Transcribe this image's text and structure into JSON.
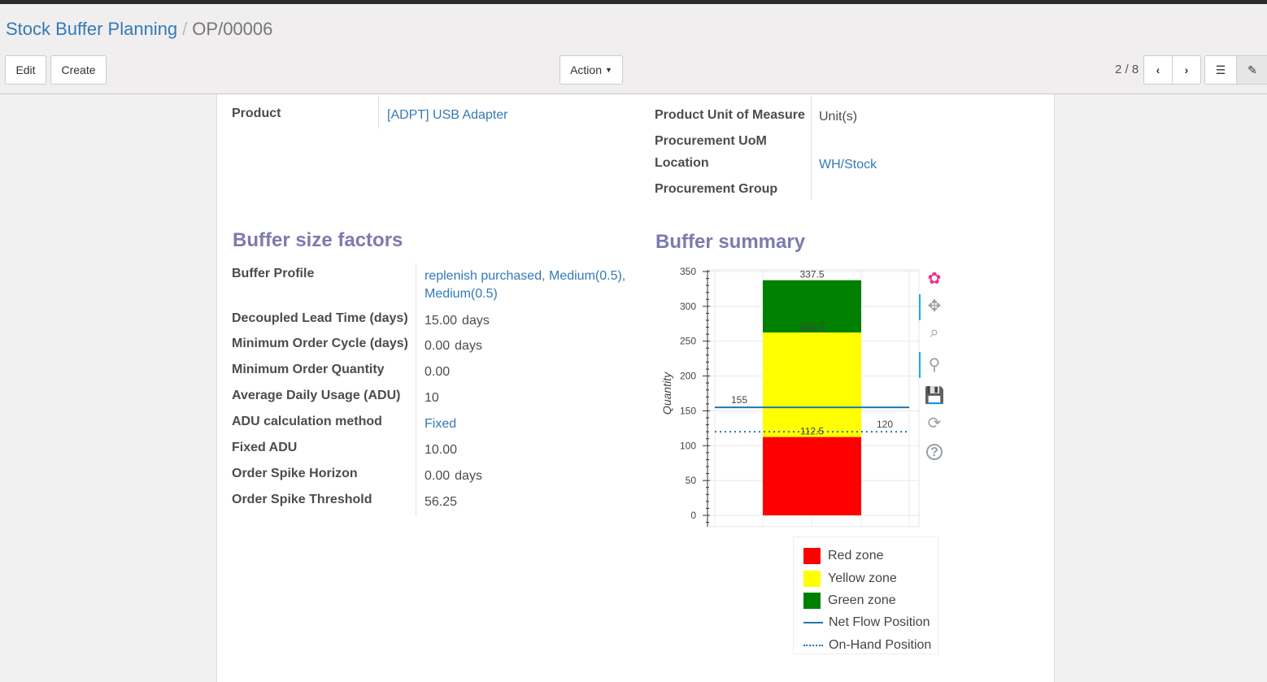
{
  "breadcrumb": {
    "parent": "Stock Buffer Planning",
    "separator": "/",
    "current": "OP/00006"
  },
  "toolbar": {
    "edit": "Edit",
    "create": "Create",
    "action": "Action",
    "pager": "2 / 8"
  },
  "form": {
    "product_label": "Product",
    "product_value": "[ADPT] USB Adapter",
    "uom_label": "Product Unit of Measure",
    "uom_value": "Unit(s)",
    "proc_uom_label": "Procurement UoM",
    "location_label": "Location",
    "location_value": "WH/Stock",
    "proc_group_label": "Procurement Group"
  },
  "factors": {
    "title": "Buffer size factors",
    "rows": [
      {
        "label": "Buffer Profile",
        "value": "replenish purchased, Medium(0.5), Medium(0.5)",
        "link": true
      },
      {
        "label": "Decoupled Lead Time (days)",
        "value": "15.00",
        "unit": "days"
      },
      {
        "label": "Minimum Order Cycle (days)",
        "value": "0.00",
        "unit": "days"
      },
      {
        "label": "Minimum Order Quantity",
        "value": "0.00"
      },
      {
        "label": "Average Daily Usage (ADU)",
        "value": "10"
      },
      {
        "label": "ADU calculation method",
        "value": "Fixed",
        "link": true
      },
      {
        "label": "Fixed ADU",
        "value": "10.00"
      },
      {
        "label": "Order Spike Horizon",
        "value": "0.00",
        "unit": "days"
      },
      {
        "label": "Order Spike Threshold",
        "value": "56.25"
      }
    ]
  },
  "summary": {
    "title": "Buffer summary"
  },
  "chart_data": {
    "type": "bar",
    "ylabel": "Quantity",
    "ylim": [
      0,
      350
    ],
    "yticks": [
      0,
      50,
      100,
      150,
      200,
      250,
      300,
      350
    ],
    "stacked_zones": [
      {
        "name": "Red zone",
        "from": 0,
        "to": 112.5,
        "color": "#ff0000",
        "label": "112.5"
      },
      {
        "name": "Yellow zone",
        "from": 112.5,
        "to": 262.5,
        "color": "#ffff00",
        "label": "262.5"
      },
      {
        "name": "Green zone",
        "from": 262.5,
        "to": 337.5,
        "color": "#008000",
        "label": "337.5"
      }
    ],
    "lines": [
      {
        "name": "Net Flow Position",
        "value": 155,
        "style": "solid",
        "color": "#1f77b4",
        "label": "155"
      },
      {
        "name": "On-Hand Position",
        "value": 120,
        "style": "dotted",
        "color": "#1f77b4",
        "label": "120"
      }
    ],
    "legend_position": "bottom-right",
    "grid": true
  },
  "chart_tools": [
    "bokeh-logo-icon",
    "pan-icon",
    "box-zoom-icon",
    "wheel-zoom-icon",
    "save-icon",
    "reset-icon",
    "help-icon"
  ]
}
